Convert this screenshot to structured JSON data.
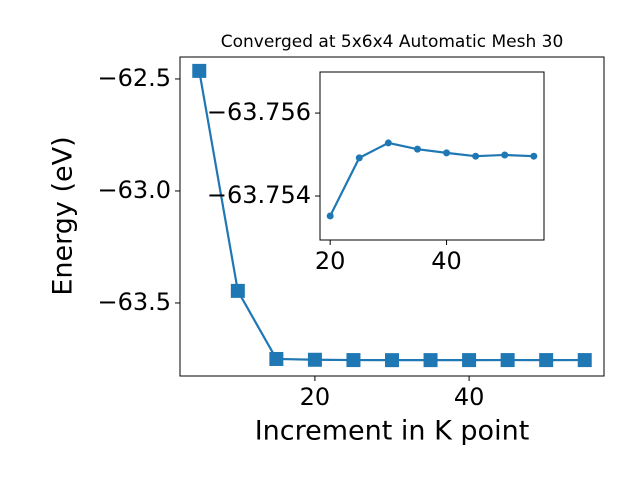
{
  "chart_data": [
    {
      "type": "line",
      "title": "Converged at 5x6x4 Automatic Mesh 30",
      "x_label": "Increment in K point",
      "y_label": "Energy (eV)",
      "x": [
        5,
        10,
        15,
        20,
        25,
        30,
        35,
        40,
        45,
        50,
        55
      ],
      "series": [
        {
          "color": "#1f77b4",
          "marker": "square",
          "values": [
            -62.464,
            -63.446,
            -63.75,
            -63.75352,
            -63.75492,
            -63.75528,
            -63.75513,
            -63.75504,
            -63.75496,
            -63.75499,
            -63.75496
          ]
        }
      ],
      "xlim": [
        2.5,
        57.5
      ],
      "ylim": [
        -63.826,
        -62.402
      ],
      "xticks": [
        20,
        40
      ],
      "yticks": [
        {
          "value": -62.5,
          "label": "−62.5"
        },
        {
          "value": -63.0,
          "label": "−63.0"
        },
        {
          "value": -63.5,
          "label": "−63.5"
        }
      ]
    },
    {
      "type": "line",
      "x": [
        20,
        25,
        30,
        35,
        40,
        45,
        50,
        55
      ],
      "series": [
        {
          "color": "#1f77b4",
          "marker": "circle",
          "values": [
            -63.75352,
            -63.75492,
            -63.75528,
            -63.75513,
            -63.75504,
            -63.75496,
            -63.75499,
            -63.75496
          ]
        }
      ],
      "xlim": [
        18.25,
        56.75
      ],
      "ylim": [
        -63.75294,
        -63.75699
      ],
      "xticks": [
        20,
        40
      ],
      "yticks": [
        {
          "value": -63.756,
          "label": "−63.756"
        },
        {
          "value": -63.754,
          "label": "−63.754"
        }
      ]
    }
  ]
}
